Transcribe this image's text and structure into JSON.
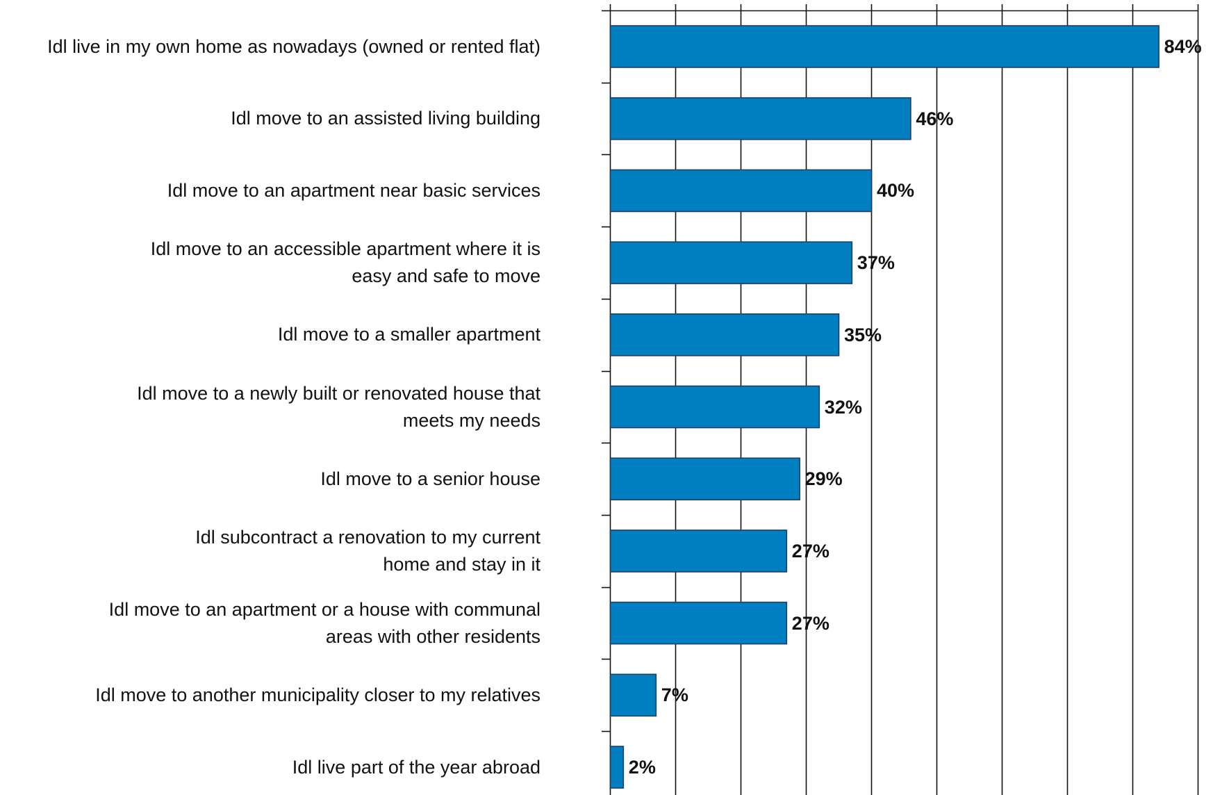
{
  "chart_data": {
    "type": "bar",
    "orientation": "horizontal",
    "title": "",
    "xlabel": "",
    "ylabel": "",
    "xlim": [
      0,
      90
    ],
    "grid": true,
    "legend": "none",
    "bar_color": "#0080c0",
    "bar_border_color": "#1f3f66",
    "categories": [
      "Idl live in my own home as nowadays (owned or rented flat)",
      "Idl move to an assisted living building",
      "Idl move to an apartment near basic services",
      "Idl move to an accessible apartment where it is\neasy and safe to move",
      "Idl move to a smaller apartment",
      "Idl move to a newly built or renovated house that\nmeets my needs",
      "Idl move to a senior house",
      "Idl subcontract a renovation to my current\nhome and stay in it",
      "Idl move to an apartment or a house with communal\nareas with other residents",
      "Idl move to another municipality closer to my relatives",
      "Idl live part of the year abroad"
    ],
    "values": [
      84,
      46,
      40,
      37,
      35,
      32,
      29,
      27,
      27,
      7,
      2
    ],
    "value_labels": [
      "84%",
      "46%",
      "40%",
      "37%",
      "35%",
      "32%",
      "29%",
      "27%",
      "27%",
      "7%",
      "2%"
    ]
  }
}
